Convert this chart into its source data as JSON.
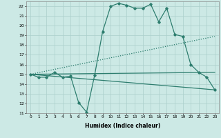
{
  "title": "",
  "xlabel": "Humidex (Indice chaleur)",
  "ylabel": "",
  "xlim": [
    -0.5,
    23.5
  ],
  "ylim": [
    11,
    22.5
  ],
  "yticks": [
    11,
    12,
    13,
    14,
    15,
    16,
    17,
    18,
    19,
    20,
    21,
    22
  ],
  "xticks": [
    0,
    1,
    2,
    3,
    4,
    5,
    6,
    7,
    8,
    9,
    10,
    11,
    12,
    13,
    14,
    15,
    16,
    17,
    18,
    19,
    20,
    21,
    22,
    23
  ],
  "bg_color": "#cce9e5",
  "line_color": "#2d7d6e",
  "grid_color": "#aacfcb",
  "series": [
    {
      "x": [
        0,
        1,
        2,
        3,
        4,
        5,
        6,
        7,
        8,
        9,
        10,
        11,
        12,
        13,
        14,
        15,
        16,
        17,
        18,
        19,
        20,
        21,
        22,
        23
      ],
      "y": [
        15.0,
        14.7,
        14.7,
        15.2,
        14.7,
        14.8,
        12.1,
        11.1,
        14.9,
        19.4,
        22.0,
        22.3,
        22.1,
        21.8,
        21.8,
        22.2,
        20.4,
        21.8,
        19.1,
        18.9,
        16.0,
        15.2,
        14.7,
        13.4
      ],
      "style": "-",
      "marker": "D",
      "markersize": 1.8,
      "linewidth": 0.9
    },
    {
      "x": [
        0,
        23
      ],
      "y": [
        15.0,
        13.4
      ],
      "style": "-",
      "marker": null,
      "markersize": 0,
      "linewidth": 0.9
    },
    {
      "x": [
        0,
        23
      ],
      "y": [
        15.0,
        18.9
      ],
      "style": ":",
      "marker": null,
      "markersize": 0,
      "linewidth": 0.9
    },
    {
      "x": [
        0,
        23
      ],
      "y": [
        15.0,
        15.2
      ],
      "style": "-",
      "marker": null,
      "markersize": 0,
      "linewidth": 0.9
    }
  ]
}
